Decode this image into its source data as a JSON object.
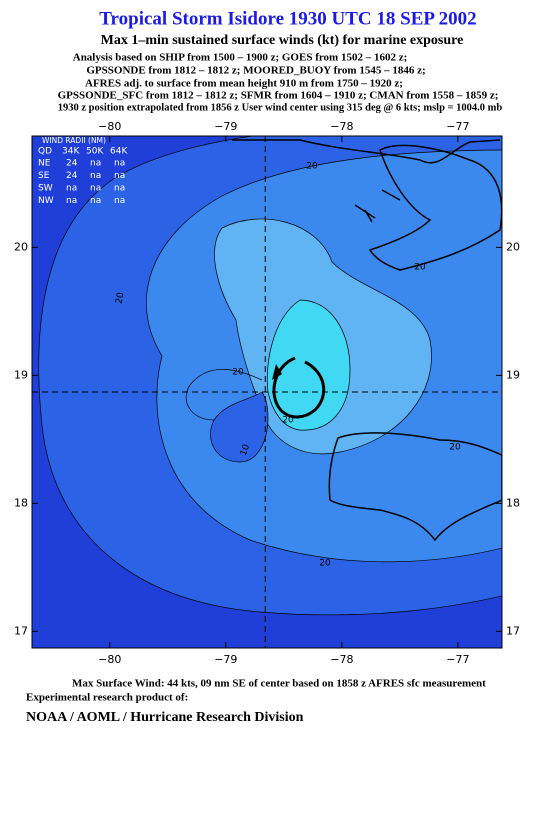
{
  "header": {
    "title": "Tropical Storm Isidore 1930 UTC 18 SEP 2002",
    "subtitle": "Max 1–min sustained surface winds (kt) for marine exposure",
    "notes": [
      "Analysis based on  SHIP from 1500 – 1900 z;  GOES from 1502 – 1602 z;",
      "GPSSONDE from 1812 – 1812 z;  MOORED_BUOY from 1545 – 1846 z;",
      "AFRES adj. to surface from mean height 910 m from 1750 – 1920 z;",
      "GPSSONDE_SFC from 1812 – 1812 z;  SFMR from 1604 – 1910 z;  CMAN from 1558 – 1859 z;",
      "1930 z position extrapolated from 1856 z User wind center using 315 deg @ 6 kts; mslp = 1004.0 mb"
    ]
  },
  "map": {
    "xlim": [
      -80.67,
      -76.62
    ],
    "ylim": [
      16.87,
      20.87
    ],
    "xticks": [
      {
        "value": -80,
        "label": "−80"
      },
      {
        "value": -79,
        "label": "−79"
      },
      {
        "value": -78,
        "label": "−78"
      },
      {
        "value": -77,
        "label": "−77"
      }
    ],
    "yticks": [
      17,
      18,
      19,
      20
    ],
    "center": {
      "lon": -78.66,
      "lat": 18.87
    },
    "contour_labels": [
      20,
      20,
      20,
      20,
      20,
      10,
      20,
      20
    ]
  },
  "wind_radii": {
    "title": "WIND RADII (NM)",
    "columns": [
      "QD",
      "34K",
      "50K",
      "64K"
    ],
    "rows": [
      [
        "NE",
        24,
        "na",
        "na"
      ],
      [
        "SE",
        24,
        "na",
        "na"
      ],
      [
        "SW",
        "na",
        "na",
        "na"
      ],
      [
        "NW",
        "na",
        "na",
        "na"
      ]
    ]
  },
  "footer": {
    "max_wind": "Max Surface Wind: 44 kts, 09 nm SE of center based on 1858 z AFRES sfc measurement",
    "credit": "Experimental research product of:",
    "org": "NOAA / AOML / Hurricane Research Division"
  }
}
